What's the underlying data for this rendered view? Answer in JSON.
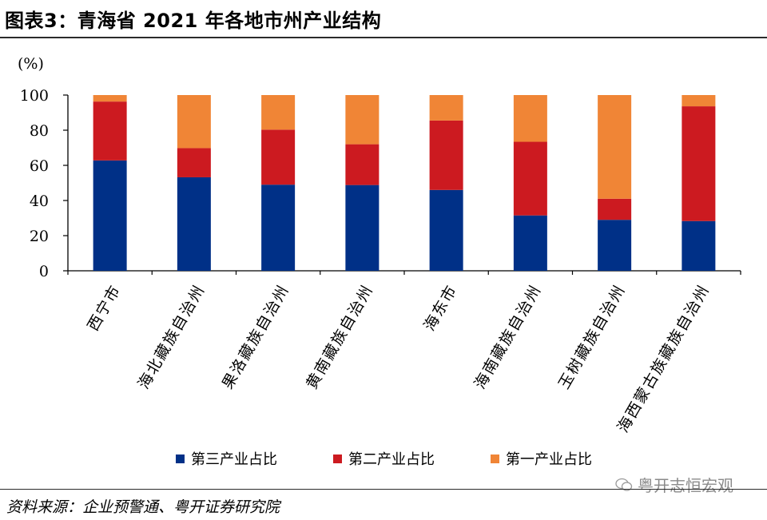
{
  "figure": {
    "title": "图表3：青海省 2021 年各地市州产业结构",
    "source": "资料来源：企业预警通、粤开证券研究院",
    "watermark": "粤开志恒宏观"
  },
  "chart_data": {
    "type": "bar",
    "stacked": true,
    "ylabel": "(%)",
    "ylim": [
      0,
      100
    ],
    "yticks": [
      0,
      20,
      40,
      60,
      80,
      100
    ],
    "grid": false,
    "legend_position": "bottom",
    "categories": [
      "西宁市",
      "海北藏族自治州",
      "果洛藏族自治州",
      "黄南藏族自治州",
      "海东市",
      "海南藏族自治州",
      "玉树藏族自治州",
      "海西蒙古族藏族自治州"
    ],
    "series": [
      {
        "name": "第三产业占比",
        "color": "#003087",
        "values": [
          62.8,
          53.2,
          49.0,
          48.8,
          46.0,
          31.5,
          29.0,
          28.3
        ]
      },
      {
        "name": "第二产业占比",
        "color": "#cc1a20",
        "values": [
          33.5,
          16.6,
          31.3,
          23.2,
          39.5,
          41.9,
          12.0,
          65.3
        ]
      },
      {
        "name": "第一产业占比",
        "color": "#f08536",
        "values": [
          3.7,
          30.2,
          19.7,
          28.0,
          14.5,
          26.6,
          59.0,
          6.4
        ]
      }
    ]
  }
}
